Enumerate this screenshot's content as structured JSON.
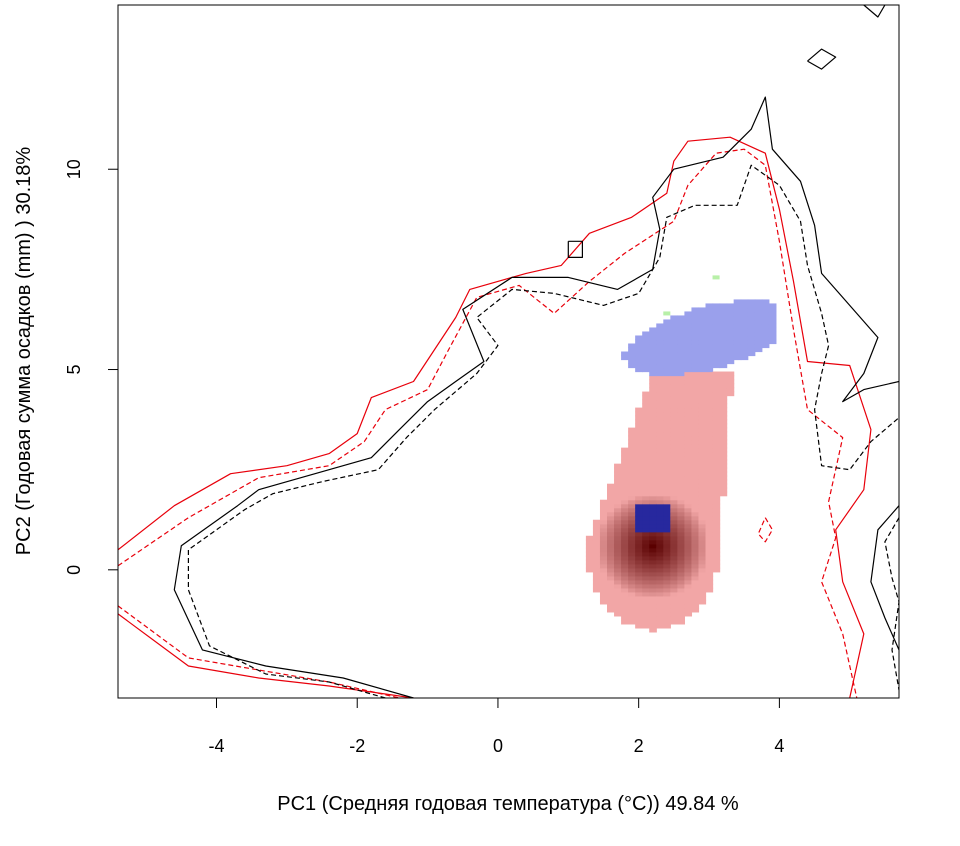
{
  "chart_data": {
    "type": "heatmap",
    "title": "",
    "xlabel": "PC1 (Средняя годовая температура (°C)) 49.84 %",
    "ylabel": "PC2 (Годовая сумма осадков  (mm) ) 30.18%",
    "xlim": [
      -5.4,
      5.7
    ],
    "ylim": [
      -3.2,
      14.1
    ],
    "x_ticks": [
      -4,
      -2,
      0,
      2,
      4
    ],
    "y_ticks": [
      0,
      5,
      10
    ],
    "grid": false,
    "legend": "none",
    "colors": {
      "red_contour": "#e8000b",
      "black_contour": "#000000",
      "red_density_light": "#f2a6a6",
      "red_density_dark": "#5a0000",
      "blue_density_light": "#9aa0ec",
      "blue_density_dark": "#0a0a8a",
      "overlap_green": "#b8f0a8"
    },
    "density_regions": [
      {
        "name": "red",
        "center": [
          2.2,
          0.6
        ],
        "peak": [
          2.2,
          0.6
        ],
        "extent_x": [
          1.1,
          3.0
        ],
        "extent_y": [
          -1.5,
          4.9
        ]
      },
      {
        "name": "blue",
        "center": [
          3.0,
          5.8
        ],
        "extent_x": [
          2.2,
          3.9
        ],
        "extent_y": [
          3.9,
          7.3
        ],
        "dense_core": [
          2.2,
          1.3
        ]
      }
    ],
    "contours": [
      {
        "color": "red",
        "style": "solid",
        "points": [
          [
            -5.4,
            0.5
          ],
          [
            -4.6,
            1.6
          ],
          [
            -3.8,
            2.4
          ],
          [
            -3.0,
            2.6
          ],
          [
            -2.4,
            2.9
          ],
          [
            -2.0,
            3.4
          ],
          [
            -1.8,
            4.3
          ],
          [
            -1.2,
            4.7
          ],
          [
            -0.9,
            5.5
          ],
          [
            -0.6,
            6.3
          ],
          [
            -0.4,
            7.0
          ],
          [
            0.4,
            7.4
          ],
          [
            0.9,
            7.6
          ],
          [
            1.3,
            8.4
          ],
          [
            1.9,
            8.8
          ],
          [
            2.4,
            9.4
          ],
          [
            2.5,
            10.2
          ],
          [
            2.7,
            10.7
          ],
          [
            3.3,
            10.8
          ],
          [
            3.8,
            10.4
          ],
          [
            4.0,
            9.0
          ],
          [
            4.2,
            7.2
          ],
          [
            4.4,
            5.2
          ],
          [
            5.0,
            5.1
          ],
          [
            5.3,
            3.5
          ],
          [
            5.2,
            2.0
          ],
          [
            4.8,
            1.0
          ],
          [
            4.9,
            -0.3
          ],
          [
            5.2,
            -1.6
          ],
          [
            5.0,
            -3.2
          ]
        ]
      },
      {
        "color": "red",
        "style": "solid",
        "points": [
          [
            -5.4,
            -1.1
          ],
          [
            -4.4,
            -2.4
          ],
          [
            -3.4,
            -2.7
          ],
          [
            -2.4,
            -2.9
          ],
          [
            -1.2,
            -3.2
          ]
        ]
      },
      {
        "color": "red",
        "style": "dashed",
        "points": [
          [
            -5.4,
            0.1
          ],
          [
            -4.4,
            1.3
          ],
          [
            -3.4,
            2.3
          ],
          [
            -2.4,
            2.6
          ],
          [
            -1.9,
            3.2
          ],
          [
            -1.6,
            4.0
          ],
          [
            -1.0,
            4.5
          ],
          [
            -0.7,
            5.5
          ],
          [
            -0.3,
            6.8
          ],
          [
            0.3,
            7.1
          ],
          [
            0.8,
            6.4
          ],
          [
            1.3,
            7.2
          ],
          [
            1.8,
            7.9
          ],
          [
            2.5,
            8.7
          ],
          [
            2.7,
            9.6
          ],
          [
            3.1,
            10.4
          ],
          [
            3.5,
            10.5
          ],
          [
            3.8,
            10.1
          ],
          [
            4.0,
            8.2
          ],
          [
            4.2,
            6.0
          ],
          [
            4.4,
            4.0
          ],
          [
            4.9,
            3.3
          ],
          [
            4.7,
            1.7
          ],
          [
            4.8,
            0.8
          ],
          [
            4.6,
            -0.3
          ],
          [
            4.9,
            -1.6
          ],
          [
            5.1,
            -3.2
          ]
        ]
      },
      {
        "color": "red",
        "style": "dashed",
        "points": [
          [
            -5.4,
            -0.9
          ],
          [
            -4.4,
            -2.2
          ],
          [
            -3.4,
            -2.5
          ],
          [
            -2.4,
            -2.8
          ],
          [
            -1.4,
            -3.2
          ]
        ]
      },
      {
        "color": "red",
        "style": "dashed",
        "points": [
          [
            3.8,
            1.3
          ],
          [
            3.9,
            1.0
          ],
          [
            3.8,
            0.7
          ],
          [
            3.7,
            0.9
          ],
          [
            3.8,
            1.3
          ]
        ]
      },
      {
        "color": "black",
        "style": "solid",
        "points": [
          [
            -1.2,
            -3.2
          ],
          [
            -2.2,
            -2.7
          ],
          [
            -3.3,
            -2.4
          ],
          [
            -4.2,
            -2.0
          ],
          [
            -4.6,
            -0.5
          ],
          [
            -4.5,
            0.6
          ],
          [
            -3.7,
            1.6
          ],
          [
            -3.4,
            2.0
          ],
          [
            -2.6,
            2.4
          ],
          [
            -1.8,
            2.8
          ],
          [
            -1.4,
            3.5
          ],
          [
            -1.0,
            4.2
          ],
          [
            -0.6,
            4.7
          ],
          [
            -0.2,
            5.2
          ],
          [
            -0.5,
            6.5
          ],
          [
            0.2,
            7.3
          ],
          [
            1.0,
            7.3
          ],
          [
            1.7,
            7.0
          ],
          [
            2.2,
            7.5
          ],
          [
            2.3,
            8.5
          ],
          [
            2.2,
            9.3
          ],
          [
            2.5,
            10.0
          ],
          [
            3.2,
            10.3
          ],
          [
            3.6,
            11.0
          ],
          [
            3.8,
            11.8
          ],
          [
            3.9,
            10.5
          ],
          [
            4.3,
            9.7
          ],
          [
            4.5,
            8.6
          ],
          [
            4.6,
            7.4
          ],
          [
            4.9,
            6.8
          ],
          [
            5.4,
            5.8
          ],
          [
            5.2,
            4.9
          ],
          [
            4.9,
            4.2
          ],
          [
            5.2,
            4.5
          ],
          [
            5.7,
            4.7
          ]
        ]
      },
      {
        "color": "black",
        "style": "solid",
        "points": [
          [
            1.0,
            8.2
          ],
          [
            1.2,
            8.2
          ],
          [
            1.2,
            7.8
          ],
          [
            1.0,
            7.8
          ],
          [
            1.0,
            8.2
          ]
        ]
      },
      {
        "color": "black",
        "style": "solid",
        "points": [
          [
            4.4,
            12.7
          ],
          [
            4.6,
            13.0
          ],
          [
            4.8,
            12.8
          ],
          [
            4.6,
            12.5
          ],
          [
            4.4,
            12.7
          ]
        ]
      },
      {
        "color": "black",
        "style": "solid",
        "points": [
          [
            5.2,
            14.1
          ],
          [
            5.4,
            13.8
          ],
          [
            5.5,
            14.1
          ]
        ]
      },
      {
        "color": "black",
        "style": "solid",
        "points": [
          [
            5.7,
            1.6
          ],
          [
            5.4,
            1.0
          ],
          [
            5.3,
            -0.3
          ],
          [
            5.5,
            -1.2
          ],
          [
            5.7,
            -2.0
          ]
        ]
      },
      {
        "color": "black",
        "style": "dashed",
        "points": [
          [
            -1.6,
            -3.2
          ],
          [
            -2.4,
            -2.8
          ],
          [
            -3.3,
            -2.6
          ],
          [
            -4.1,
            -1.9
          ],
          [
            -4.4,
            -0.5
          ],
          [
            -4.4,
            0.5
          ],
          [
            -3.6,
            1.5
          ],
          [
            -3.2,
            1.9
          ],
          [
            -2.5,
            2.2
          ],
          [
            -1.7,
            2.5
          ],
          [
            -1.3,
            3.3
          ],
          [
            -0.9,
            4.0
          ],
          [
            -0.3,
            4.9
          ],
          [
            0.0,
            5.6
          ],
          [
            -0.3,
            6.3
          ],
          [
            0.2,
            7.0
          ],
          [
            0.8,
            6.9
          ],
          [
            1.5,
            6.6
          ],
          [
            2.0,
            6.9
          ],
          [
            2.3,
            7.8
          ],
          [
            2.4,
            8.8
          ],
          [
            2.8,
            9.1
          ],
          [
            3.4,
            9.1
          ],
          [
            3.6,
            10.1
          ],
          [
            4.0,
            9.6
          ],
          [
            4.3,
            8.7
          ],
          [
            4.4,
            7.6
          ],
          [
            4.6,
            6.4
          ],
          [
            4.7,
            5.6
          ],
          [
            4.6,
            4.9
          ],
          [
            4.5,
            4.0
          ],
          [
            4.6,
            2.6
          ],
          [
            5.0,
            2.5
          ],
          [
            5.3,
            3.2
          ],
          [
            5.7,
            3.8
          ]
        ]
      },
      {
        "color": "black",
        "style": "dashed",
        "points": [
          [
            5.7,
            1.3
          ],
          [
            5.5,
            0.7
          ],
          [
            5.6,
            -0.2
          ],
          [
            5.7,
            -0.8
          ],
          [
            5.6,
            -2.0
          ],
          [
            5.7,
            -3.0
          ]
        ]
      }
    ]
  }
}
